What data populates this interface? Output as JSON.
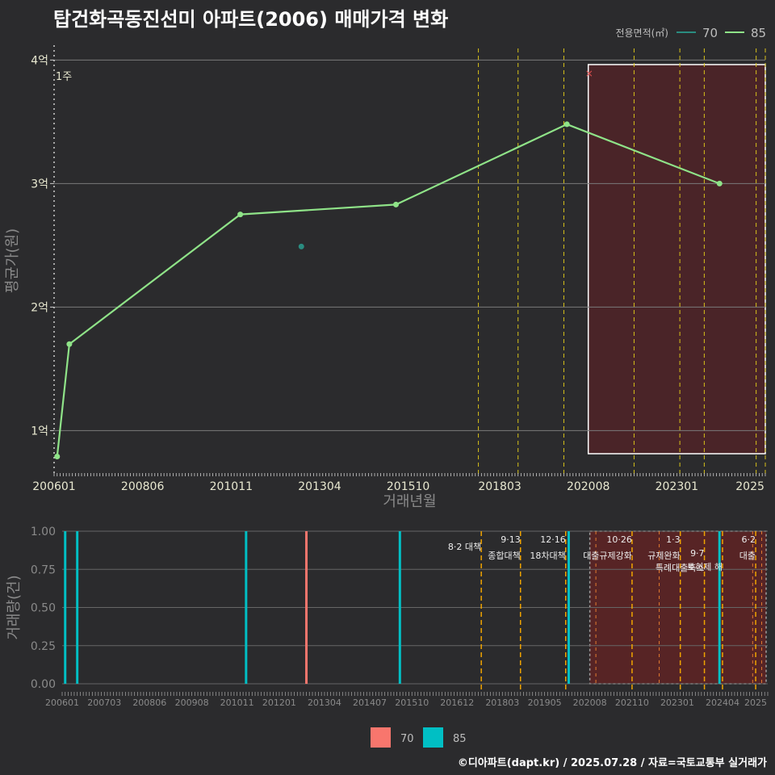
{
  "title": "탑건화곡동진선미 아파트(2006) 매매가격 변화",
  "credit": "©디아파트(dapt.kr) / 2025.07.28 / 자료=국토교통부 실거래가",
  "colors": {
    "background": "#2b2b2d",
    "s70_top": "#2a8c80",
    "s85_top": "#8fe388",
    "s70_bar": "#f8766d",
    "s85_bar": "#00bfc4",
    "event": "#d8c21a",
    "event_bottom": "#f0a400",
    "highlight": "#4a2428"
  },
  "chart_data": [
    {
      "type": "line",
      "title": "탑건화곡동진선미 아파트(2006) 매매가격 변화",
      "xlabel": "거래년월",
      "ylabel": "평균가(원)",
      "x_tick_labels": [
        "200601",
        "200806",
        "201011",
        "201304",
        "201510",
        "201803",
        "202008",
        "202301",
        "2025"
      ],
      "x_ticks_months": [
        0,
        29,
        58,
        87,
        116,
        146,
        175,
        204,
        228
      ],
      "xlim_months": [
        0,
        233
      ],
      "y_tick_labels": [
        "1억",
        "2억",
        "3억",
        "4억"
      ],
      "y_ticks": [
        1,
        2,
        3,
        4
      ],
      "ylim": [
        0.63,
        4.12
      ],
      "legend": {
        "title": "전용면적(㎡)",
        "entries": [
          "70",
          "85"
        ],
        "position": "top-right"
      },
      "series": [
        {
          "name": "85",
          "points": [
            {
              "x": 1,
              "y": 0.79
            },
            {
              "x": 5,
              "y": 1.7
            },
            {
              "x": 61,
              "y": 2.75
            },
            {
              "x": 112,
              "y": 2.83
            },
            {
              "x": 168,
              "y": 3.48
            },
            {
              "x": 218,
              "y": 3.0
            }
          ]
        },
        {
          "name": "70",
          "points": [
            {
              "x": 81,
              "y": 2.49
            }
          ]
        }
      ],
      "annotation_text": "1주",
      "marker_note": "×",
      "highlight_range_months": [
        175,
        233
      ],
      "event_lines_months": [
        139,
        152,
        167,
        190,
        205,
        213,
        230,
        233
      ]
    },
    {
      "type": "bar",
      "ylabel": "거래량(건)",
      "x_tick_labels": [
        "200601",
        "200703",
        "200806",
        "200908",
        "201011",
        "201201",
        "201304",
        "201407",
        "201510",
        "201612",
        "201803",
        "201905",
        "202008",
        "202110",
        "202301",
        "202404",
        "2025"
      ],
      "x_ticks_months": [
        0,
        14,
        29,
        43,
        58,
        72,
        87,
        102,
        116,
        131,
        146,
        160,
        175,
        189,
        204,
        219,
        230
      ],
      "xlim_months": [
        0,
        234
      ],
      "y_tick_labels": [
        "0.00",
        "0.25",
        "0.50",
        "0.75",
        "1.00"
      ],
      "y_ticks": [
        0,
        0.25,
        0.5,
        0.75,
        1.0
      ],
      "ylim": [
        0,
        1.0
      ],
      "legend": {
        "entries": [
          "70",
          "85"
        ],
        "position": "bottom"
      },
      "series": [
        {
          "name": "85",
          "x": [
            1,
            5,
            61,
            112,
            168,
            218
          ],
          "values": [
            1,
            1,
            1,
            1,
            1,
            1
          ]
        },
        {
          "name": "70",
          "x": [
            81
          ],
          "values": [
            1
          ]
        }
      ],
      "highlight_range_months": [
        175,
        234
      ],
      "events": [
        {
          "month": 139,
          "line1": "8·2 대책",
          "line2": ""
        },
        {
          "month": 152,
          "line1": "9·13",
          "line2": "종합대책"
        },
        {
          "month": 167,
          "line1": "12·16",
          "line2": "18차대책"
        },
        {
          "month": 189,
          "line1": "10·26",
          "line2": "대출규제강화"
        },
        {
          "month": 205,
          "line1": "1·3",
          "line2": "규제완화"
        },
        {
          "month": 213,
          "line1": "9·7",
          "line2": "특례대출축소"
        },
        {
          "month": 219,
          "line1": "",
          "line2": "토허제 해"
        },
        {
          "month": 230,
          "line1": "6·2",
          "line2": "대출"
        }
      ],
      "extra_lines_months": [
        177,
        198,
        229,
        232
      ]
    }
  ]
}
